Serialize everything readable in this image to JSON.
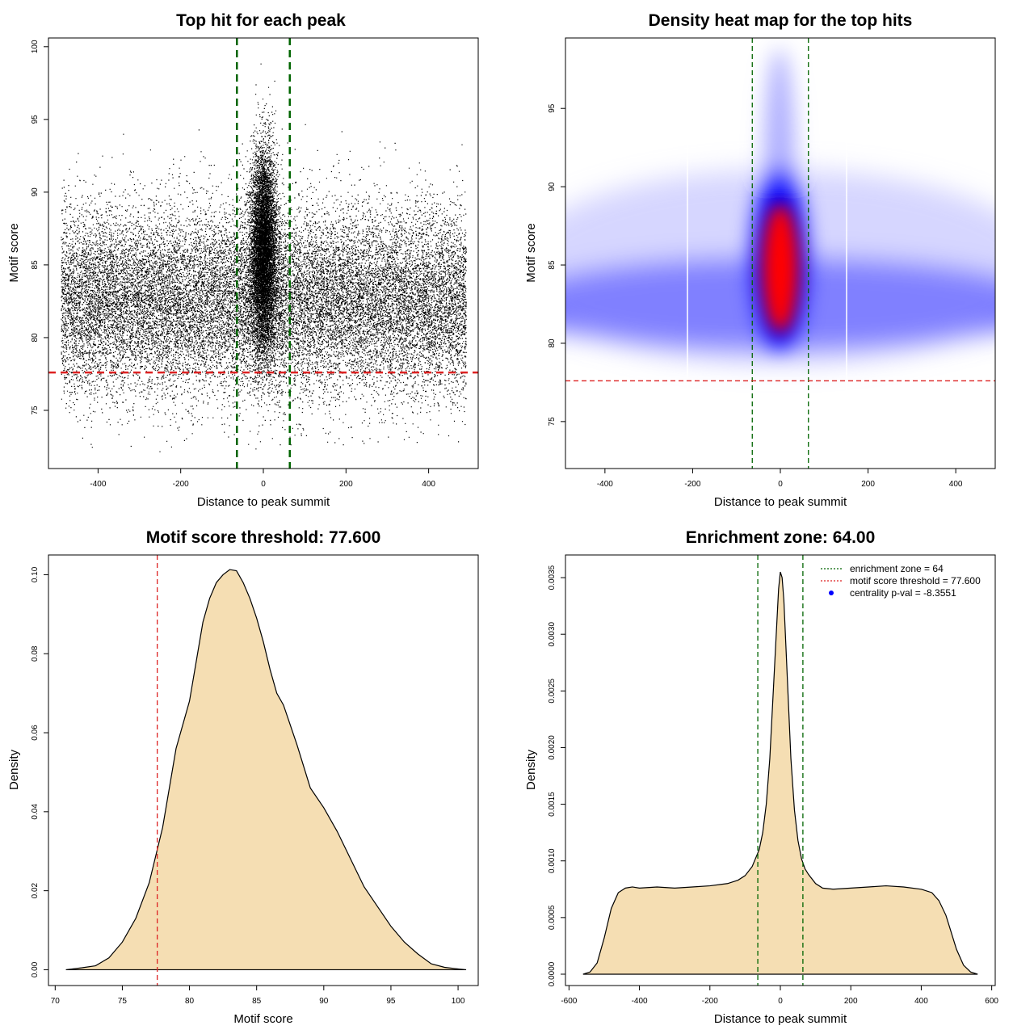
{
  "chart_data": [
    {
      "id": "scatter",
      "type": "scatter",
      "title": "Top hit for each peak",
      "xlabel": "Distance to peak summit",
      "ylabel": "Motif score",
      "xlim": [
        -520,
        520
      ],
      "ylim": [
        71,
        100.6
      ],
      "xticks": [
        -400,
        -200,
        0,
        200,
        400
      ],
      "xtick_labels": [
        "-400",
        "-200",
        "0",
        "200",
        "400"
      ],
      "yticks": [
        75,
        80,
        85,
        90,
        95,
        100
      ],
      "ytick_labels": [
        "75",
        "80",
        "85",
        "90",
        "95",
        "100"
      ],
      "vlines": [
        -64,
        64
      ],
      "hlines": [
        77.6
      ],
      "line_colors": {
        "enrichment_zone": "#006400",
        "threshold": "#dd2222"
      },
      "point_color": "#000000",
      "summary": {
        "x_range": [
          -490,
          490
        ],
        "y_range": [
          72,
          99.2
        ],
        "background_mode": 82.5,
        "central_mode": 86,
        "central_width": 40,
        "n_points": 30000
      }
    },
    {
      "id": "heatmap",
      "type": "heatmap",
      "title": "Density heat map for the top hits",
      "xlabel": "Distance to peak summit",
      "ylabel": "Motif score",
      "xlim": [
        -490,
        490
      ],
      "ylim": [
        72,
        99.5
      ],
      "xticks": [
        -400,
        -200,
        0,
        200,
        400
      ],
      "xtick_labels": [
        "-400",
        "-200",
        "0",
        "200",
        "400"
      ],
      "yticks": [
        75,
        80,
        85,
        90,
        95
      ],
      "ytick_labels": [
        "75",
        "80",
        "85",
        "90",
        "95"
      ],
      "vlines": [
        -64,
        64
      ],
      "hlines": [
        77.6
      ],
      "colors": {
        "low": "#ffffff",
        "mid": "#0000ff",
        "high": "#ff0000"
      },
      "line_colors": {
        "enrichment_zone": "#006400",
        "threshold": "#dd2222"
      }
    },
    {
      "id": "scoredens",
      "type": "area",
      "title": "Motif score threshold: 77.600",
      "xlabel": "Motif score",
      "ylabel": "Density",
      "xlim": [
        69.5,
        101.5
      ],
      "ylim": [
        -0.004,
        0.105
      ],
      "xticks": [
        70,
        75,
        80,
        85,
        90,
        95,
        100
      ],
      "xtick_labels": [
        "70",
        "75",
        "80",
        "85",
        "90",
        "95",
        "100"
      ],
      "yticks": [
        0,
        0.02,
        0.04,
        0.06,
        0.08,
        0.1
      ],
      "ytick_labels": [
        "0.00",
        "0.02",
        "0.04",
        "0.06",
        "0.08",
        "0.10"
      ],
      "vlines": [
        77.6
      ],
      "fill_color": "#f5deb3",
      "line_colors": {
        "threshold": "#dd2222"
      },
      "x": [
        70.8,
        72,
        73,
        74,
        75,
        76,
        77,
        78,
        78.5,
        79,
        80,
        80.5,
        81,
        81.5,
        82,
        82.5,
        83,
        83.5,
        84,
        84.5,
        85,
        85.5,
        86,
        86.5,
        87,
        88,
        89,
        90,
        91,
        92,
        93,
        94,
        95,
        96,
        97,
        98,
        99,
        100,
        100.6
      ],
      "values": [
        0.0,
        0.0005,
        0.001,
        0.003,
        0.007,
        0.013,
        0.022,
        0.036,
        0.046,
        0.056,
        0.068,
        0.078,
        0.088,
        0.094,
        0.098,
        0.1,
        0.1013,
        0.101,
        0.098,
        0.094,
        0.089,
        0.083,
        0.076,
        0.07,
        0.067,
        0.057,
        0.046,
        0.041,
        0.035,
        0.028,
        0.021,
        0.016,
        0.011,
        0.007,
        0.004,
        0.0015,
        0.0006,
        0.0002,
        0.0
      ]
    },
    {
      "id": "distdens",
      "type": "area",
      "title": "Enrichment zone: 64.00",
      "xlabel": "Distance to peak summit",
      "ylabel": "Density",
      "xlim": [
        -610,
        610
      ],
      "ylim": [
        -0.0001,
        0.0037
      ],
      "xticks": [
        -600,
        -400,
        -200,
        0,
        200,
        400,
        600
      ],
      "xtick_labels": [
        "-600",
        "-400",
        "-200",
        "0",
        "200",
        "400",
        "600"
      ],
      "yticks": [
        0,
        0.0005,
        0.001,
        0.0015,
        0.002,
        0.0025,
        0.003,
        0.0035
      ],
      "ytick_labels": [
        "0.0000",
        "0.0005",
        "0.0010",
        "0.0015",
        "0.0020",
        "0.0025",
        "0.0030",
        "0.0035"
      ],
      "vlines": [
        -64,
        64
      ],
      "fill_color": "#f5deb3",
      "line_colors": {
        "enrichment_zone": "#006400"
      },
      "x": [
        -560,
        -540,
        -520,
        -500,
        -480,
        -460,
        -440,
        -420,
        -400,
        -350,
        -300,
        -250,
        -200,
        -150,
        -120,
        -100,
        -80,
        -60,
        -50,
        -40,
        -30,
        -20,
        -10,
        -5,
        0,
        5,
        10,
        20,
        30,
        40,
        50,
        60,
        70,
        80,
        100,
        120,
        150,
        200,
        250,
        300,
        350,
        400,
        430,
        450,
        470,
        480,
        500,
        520,
        540,
        560
      ],
      "values": [
        0.0,
        2e-05,
        0.0001,
        0.00032,
        0.00058,
        0.00072,
        0.00076,
        0.00077,
        0.00076,
        0.00077,
        0.00076,
        0.00077,
        0.00078,
        0.0008,
        0.00083,
        0.00087,
        0.00095,
        0.0011,
        0.00125,
        0.0015,
        0.0019,
        0.0025,
        0.0031,
        0.0034,
        0.00355,
        0.0035,
        0.0033,
        0.0026,
        0.0019,
        0.00145,
        0.00118,
        0.00102,
        0.00093,
        0.00088,
        0.0008,
        0.00076,
        0.00075,
        0.00076,
        0.00077,
        0.00078,
        0.00077,
        0.00075,
        0.00072,
        0.00065,
        0.00052,
        0.00042,
        0.00022,
        8e-05,
        2e-05,
        0.0
      ],
      "legend": {
        "position": "top-right",
        "entries": [
          {
            "label": "enrichment zone = 64",
            "color": "#006400",
            "style": "dotted-line"
          },
          {
            "label": "motif score threshold = 77.600",
            "color": "#dd2222",
            "style": "dotted-line"
          },
          {
            "label": "centrality p-val = -8.3551",
            "color": "#0000ff",
            "style": "point"
          }
        ]
      }
    }
  ]
}
